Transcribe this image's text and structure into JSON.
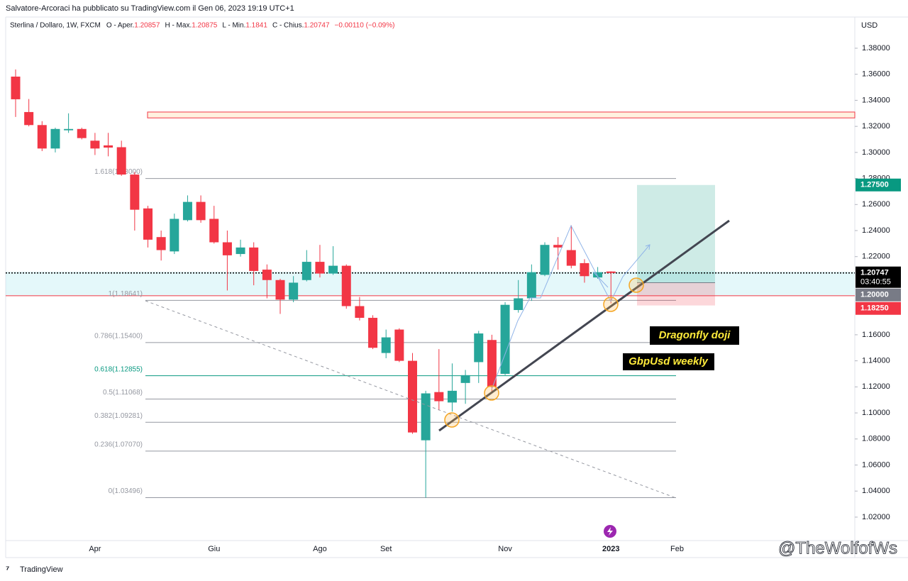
{
  "header": {
    "byline": "Salvatore-Arcoraci ha pubblicato su TradingView.com il Gen 06, 2023 19:19 UTC+1"
  },
  "chart_data": {
    "type": "candlestick",
    "symbol": "Sterlina / Dollaro, 1W, FXCM",
    "legend_fields": [
      "O - Aper.",
      "H - Max.",
      "L - Min.",
      "C - Chius."
    ],
    "change": "−0.00110 (−0.09%)",
    "y_axis_label": "USD",
    "categories": [
      null,
      null,
      null,
      null,
      null,
      null,
      "Apr",
      null,
      null,
      null,
      null,
      null,
      null,
      null,
      null,
      "Giu",
      null,
      null,
      null,
      null,
      null,
      null,
      null,
      "Ago",
      null,
      null,
      null,
      null,
      "Set",
      null,
      null,
      null,
      null,
      null,
      null,
      null,
      null,
      "Nov",
      null,
      null,
      null,
      null,
      null,
      null,
      null,
      "2023",
      null,
      null,
      null,
      null,
      "Feb"
    ],
    "open": [
      1.3582,
      1.331,
      1.321,
      1.303,
      1.317,
      1.318,
      1.309,
      1.3054,
      1.304,
      1.283,
      1.257,
      1.235,
      1.224,
      1.248,
      1.262,
      1.249,
      1.231,
      1.222,
      1.227,
      1.21,
      1.202,
      1.187,
      1.202,
      1.216,
      1.207,
      1.213,
      1.182,
      1.173,
      1.146,
      1.164,
      1.14,
      1.079,
      1.116,
      1.108,
      1.123,
      1.139,
      1.156,
      1.13,
      1.179,
      1.188,
      1.206,
      1.229,
      1.225,
      1.215,
      1.204,
      1.20857,
      null,
      null,
      null,
      null,
      null
    ],
    "high": [
      1.3637,
      1.341,
      1.324,
      1.319,
      1.33,
      1.319,
      1.315,
      1.315,
      1.309,
      1.285,
      1.259,
      1.24,
      1.253,
      1.267,
      1.267,
      1.259,
      1.24,
      1.233,
      1.231,
      1.214,
      1.203,
      1.205,
      1.225,
      1.229,
      1.228,
      1.214,
      1.189,
      1.175,
      1.164,
      1.165,
      1.146,
      1.117,
      1.149,
      1.138,
      1.133,
      1.163,
      1.16,
      1.185,
      1.202,
      1.214,
      1.231,
      1.235,
      1.244,
      1.218,
      1.212,
      1.20875,
      null,
      null,
      null,
      null,
      null
    ],
    "low": [
      1.3272,
      1.32,
      1.301,
      1.3,
      1.315,
      1.31,
      1.298,
      1.297,
      1.282,
      1.24,
      1.227,
      1.217,
      1.222,
      1.247,
      1.246,
      1.23,
      1.194,
      1.22,
      1.198,
      1.188,
      1.176,
      1.185,
      1.201,
      1.204,
      1.206,
      1.18,
      1.171,
      1.149,
      1.142,
      1.139,
      1.084,
      1.03496,
      1.102,
      1.101,
      1.107,
      1.123,
      1.116,
      1.129,
      1.177,
      1.186,
      1.205,
      1.21,
      1.211,
      1.2,
      1.203,
      1.1841,
      null,
      null,
      null,
      null,
      null
    ],
    "close": [
      1.3408,
      1.321,
      1.303,
      1.318,
      1.318,
      1.311,
      1.303,
      1.3037,
      1.283,
      1.256,
      1.233,
      1.225,
      1.249,
      1.262,
      1.248,
      1.231,
      1.221,
      1.227,
      1.209,
      1.202,
      1.187,
      1.2,
      1.216,
      1.207,
      1.213,
      1.182,
      1.173,
      1.15,
      1.158,
      1.14,
      1.085,
      1.115,
      1.109,
      1.117,
      1.129,
      1.161,
      1.12,
      1.183,
      1.188,
      1.208,
      1.229,
      1.227,
      1.213,
      1.205,
      1.208,
      1.20747,
      null,
      null,
      null,
      null,
      null
    ],
    "up_color": "#26a69a",
    "down_color": "#f23645",
    "ylim": [
      1.002,
      1.4034
    ],
    "yticks": [
      {
        "value": 1.38,
        "label": "1.38000"
      },
      {
        "value": 1.36,
        "label": "1.36000"
      },
      {
        "value": 1.34,
        "label": "1.34000"
      },
      {
        "value": 1.32,
        "label": "1.32000"
      },
      {
        "value": 1.3,
        "label": "1.30000"
      },
      {
        "value": 1.28,
        "label": "1.28000"
      },
      {
        "value": 1.26,
        "label": "1.26000"
      },
      {
        "value": 1.24,
        "label": "1.24000"
      },
      {
        "value": 1.22,
        "label": "1.22000"
      },
      {
        "value": 1.16,
        "label": "1.16000"
      },
      {
        "value": 1.14,
        "label": "1.14000"
      },
      {
        "value": 1.12,
        "label": "1.12000"
      },
      {
        "value": 1.1,
        "label": "1.10000"
      },
      {
        "value": 1.08,
        "label": "1.08000"
      },
      {
        "value": 1.06,
        "label": "1.06000"
      },
      {
        "value": 1.04,
        "label": "1.04000"
      },
      {
        "value": 1.02,
        "label": "1.02000"
      }
    ],
    "fibonacci": [
      {
        "value": 1.28,
        "label": "1.618(1.28000)",
        "color": "#9598a1"
      },
      {
        "value": 1.18641,
        "label": "1(1.18641)",
        "color": "#9598a1"
      },
      {
        "value": 1.154,
        "label": "0.786(1.15400)",
        "color": "#9598a1"
      },
      {
        "value": 1.12855,
        "label": "0.618(1.12855)",
        "color": "#089981"
      },
      {
        "value": 1.11068,
        "label": "0.5(1.11068)",
        "color": "#9598a1"
      },
      {
        "value": 1.09281,
        "label": "0.382(1.09281)",
        "color": "#9598a1"
      },
      {
        "value": 1.0707,
        "label": "0.236(1.07070)",
        "color": "#9598a1"
      },
      {
        "value": 1.03496,
        "label": "0(1.03496)",
        "color": "#9598a1"
      }
    ],
    "supply_zone": {
      "low": 1.3265,
      "high": 1.331
    },
    "support_band": {
      "low": 1.19,
      "high": 1.2085
    },
    "long_position": {
      "target": 1.275,
      "entry": 1.2,
      "stop": 1.1825
    },
    "price_tags": [
      {
        "value": 1.275,
        "label": "1.27500",
        "color": "#089981"
      },
      {
        "value": 1.20747,
        "label": "1.20747",
        "countdown": "03:40:55",
        "color": "#000000"
      },
      {
        "value": 1.2,
        "label": "1.20000",
        "color": "#787b86"
      },
      {
        "value": 1.1825,
        "label": "1.18250",
        "color": "#f23645"
      }
    ],
    "annotations": [
      "Dragonfly doji",
      "GbpUsd weekly"
    ]
  },
  "footer": {
    "logo": "TradingView",
    "watermark": "@TheWolfofWs"
  }
}
